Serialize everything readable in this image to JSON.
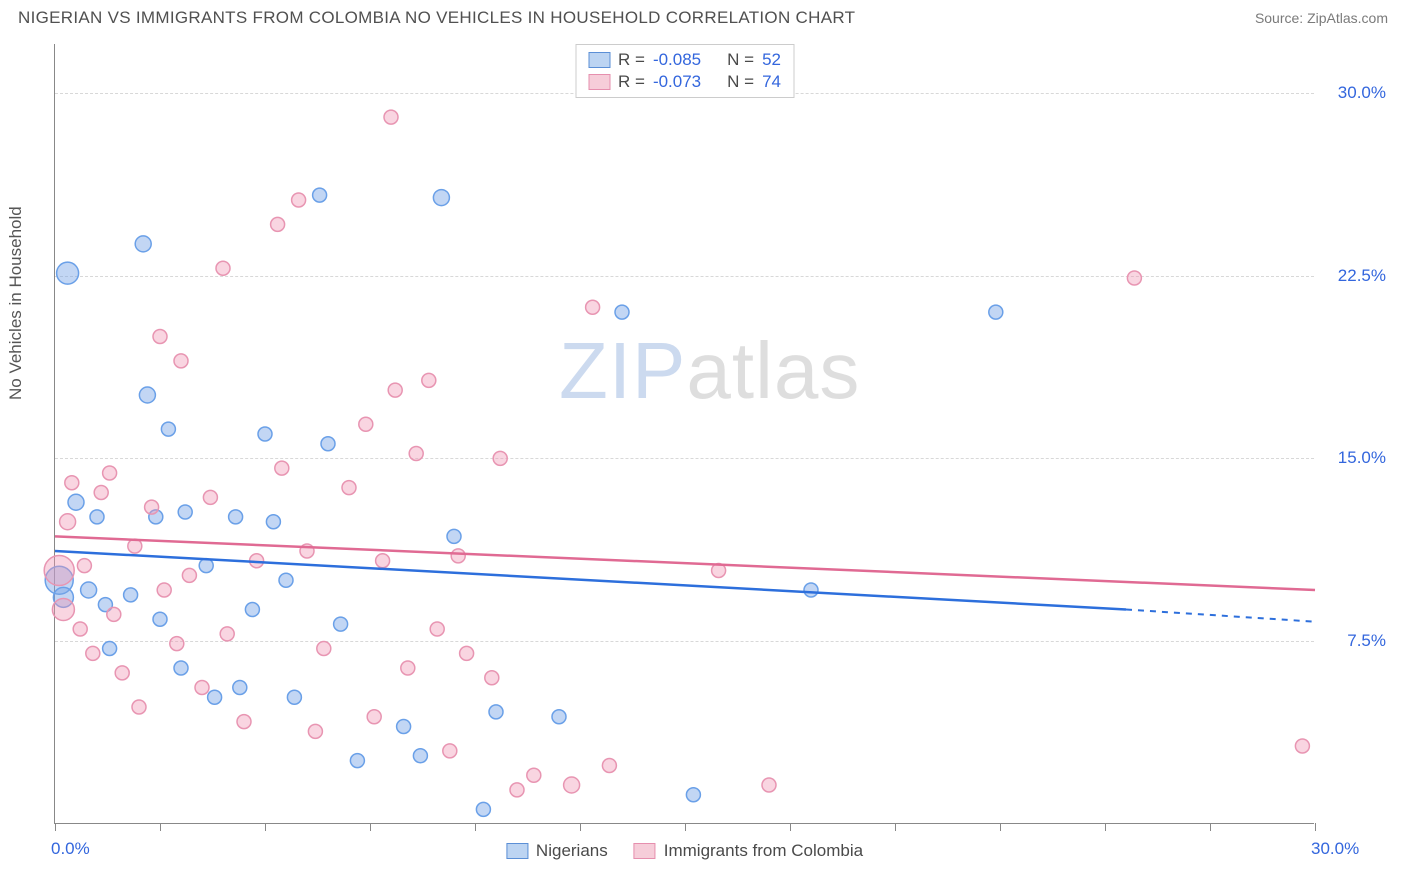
{
  "header": {
    "title": "NIGERIAN VS IMMIGRANTS FROM COLOMBIA NO VEHICLES IN HOUSEHOLD CORRELATION CHART",
    "source": "Source: ZipAtlas.com"
  },
  "chart": {
    "type": "scatter",
    "ylabel": "No Vehicles in Household",
    "watermark_z": "ZIP",
    "watermark_rest": "atlas",
    "xlim": [
      0,
      30
    ],
    "ylim": [
      0,
      32
    ],
    "x_axis_labels": [
      {
        "pos": 0,
        "text": "0.0%"
      },
      {
        "pos": 30,
        "text": "30.0%"
      }
    ],
    "x_ticks": [
      0,
      2.5,
      5,
      7.5,
      10,
      12.5,
      15,
      17.5,
      20,
      22.5,
      25,
      27.5,
      30
    ],
    "y_gridlines": [
      7.5,
      15.0,
      22.5,
      30.0
    ],
    "y_tick_labels": [
      "7.5%",
      "15.0%",
      "22.5%",
      "30.0%"
    ],
    "series": [
      {
        "name": "Nigerians",
        "color_fill": "rgba(120,165,230,0.45)",
        "color_stroke": "#6aa0e8",
        "legend_fill": "#bcd4f2",
        "legend_stroke": "#5b8fd6",
        "line_color": "#2d6fdc",
        "R": "-0.085",
        "N": "52",
        "trend": {
          "x1": 0,
          "y1": 11.2,
          "x2": 25.5,
          "y2": 8.8,
          "x2_dash": 30,
          "y2_dash": 8.3
        },
        "points": [
          {
            "x": 0.3,
            "y": 22.6,
            "r": 11
          },
          {
            "x": 0.1,
            "y": 10.0,
            "r": 14
          },
          {
            "x": 0.2,
            "y": 9.3,
            "r": 10
          },
          {
            "x": 2.1,
            "y": 23.8,
            "r": 8
          },
          {
            "x": 0.5,
            "y": 13.2,
            "r": 8
          },
          {
            "x": 0.8,
            "y": 9.6,
            "r": 8
          },
          {
            "x": 1.0,
            "y": 12.6,
            "r": 7
          },
          {
            "x": 1.2,
            "y": 9.0,
            "r": 7
          },
          {
            "x": 1.3,
            "y": 7.2,
            "r": 7
          },
          {
            "x": 1.8,
            "y": 9.4,
            "r": 7
          },
          {
            "x": 2.2,
            "y": 17.6,
            "r": 8
          },
          {
            "x": 2.4,
            "y": 12.6,
            "r": 7
          },
          {
            "x": 2.5,
            "y": 8.4,
            "r": 7
          },
          {
            "x": 2.7,
            "y": 16.2,
            "r": 7
          },
          {
            "x": 3.0,
            "y": 6.4,
            "r": 7
          },
          {
            "x": 3.1,
            "y": 12.8,
            "r": 7
          },
          {
            "x": 3.6,
            "y": 10.6,
            "r": 7
          },
          {
            "x": 3.8,
            "y": 5.2,
            "r": 7
          },
          {
            "x": 4.3,
            "y": 12.6,
            "r": 7
          },
          {
            "x": 4.4,
            "y": 5.6,
            "r": 7
          },
          {
            "x": 4.7,
            "y": 8.8,
            "r": 7
          },
          {
            "x": 5.0,
            "y": 16.0,
            "r": 7
          },
          {
            "x": 5.2,
            "y": 12.4,
            "r": 7
          },
          {
            "x": 5.5,
            "y": 10.0,
            "r": 7
          },
          {
            "x": 5.7,
            "y": 5.2,
            "r": 7
          },
          {
            "x": 6.3,
            "y": 25.8,
            "r": 7
          },
          {
            "x": 6.5,
            "y": 15.6,
            "r": 7
          },
          {
            "x": 6.8,
            "y": 8.2,
            "r": 7
          },
          {
            "x": 7.2,
            "y": 2.6,
            "r": 7
          },
          {
            "x": 8.3,
            "y": 4.0,
            "r": 7
          },
          {
            "x": 8.7,
            "y": 2.8,
            "r": 7
          },
          {
            "x": 9.2,
            "y": 25.7,
            "r": 8
          },
          {
            "x": 9.5,
            "y": 11.8,
            "r": 7
          },
          {
            "x": 10.2,
            "y": 0.6,
            "r": 7
          },
          {
            "x": 10.5,
            "y": 4.6,
            "r": 7
          },
          {
            "x": 12.0,
            "y": 4.4,
            "r": 7
          },
          {
            "x": 13.5,
            "y": 21.0,
            "r": 7
          },
          {
            "x": 15.2,
            "y": 1.2,
            "r": 7
          },
          {
            "x": 18.0,
            "y": 9.6,
            "r": 7
          },
          {
            "x": 22.4,
            "y": 21.0,
            "r": 7
          }
        ]
      },
      {
        "name": "Immigrants from Colombia",
        "color_fill": "rgba(240,150,180,0.40)",
        "color_stroke": "#e895b2",
        "legend_fill": "#f6cdd9",
        "legend_stroke": "#e68fae",
        "line_color": "#e06a93",
        "R": "-0.073",
        "N": "74",
        "trend": {
          "x1": 0,
          "y1": 11.8,
          "x2": 30,
          "y2": 9.6
        },
        "points": [
          {
            "x": 0.1,
            "y": 10.4,
            "r": 15
          },
          {
            "x": 0.2,
            "y": 8.8,
            "r": 11
          },
          {
            "x": 0.3,
            "y": 12.4,
            "r": 8
          },
          {
            "x": 0.4,
            "y": 14.0,
            "r": 7
          },
          {
            "x": 0.6,
            "y": 8.0,
            "r": 7
          },
          {
            "x": 0.7,
            "y": 10.6,
            "r": 7
          },
          {
            "x": 0.9,
            "y": 7.0,
            "r": 7
          },
          {
            "x": 1.1,
            "y": 13.6,
            "r": 7
          },
          {
            "x": 1.3,
            "y": 14.4,
            "r": 7
          },
          {
            "x": 1.4,
            "y": 8.6,
            "r": 7
          },
          {
            "x": 1.6,
            "y": 6.2,
            "r": 7
          },
          {
            "x": 1.9,
            "y": 11.4,
            "r": 7
          },
          {
            "x": 2.0,
            "y": 4.8,
            "r": 7
          },
          {
            "x": 2.3,
            "y": 13.0,
            "r": 7
          },
          {
            "x": 2.5,
            "y": 20.0,
            "r": 7
          },
          {
            "x": 2.6,
            "y": 9.6,
            "r": 7
          },
          {
            "x": 2.9,
            "y": 7.4,
            "r": 7
          },
          {
            "x": 3.0,
            "y": 19.0,
            "r": 7
          },
          {
            "x": 3.2,
            "y": 10.2,
            "r": 7
          },
          {
            "x": 3.5,
            "y": 5.6,
            "r": 7
          },
          {
            "x": 3.7,
            "y": 13.4,
            "r": 7
          },
          {
            "x": 4.0,
            "y": 22.8,
            "r": 7
          },
          {
            "x": 4.1,
            "y": 7.8,
            "r": 7
          },
          {
            "x": 4.5,
            "y": 4.2,
            "r": 7
          },
          {
            "x": 4.8,
            "y": 10.8,
            "r": 7
          },
          {
            "x": 5.3,
            "y": 24.6,
            "r": 7
          },
          {
            "x": 5.4,
            "y": 14.6,
            "r": 7
          },
          {
            "x": 5.8,
            "y": 25.6,
            "r": 7
          },
          {
            "x": 6.0,
            "y": 11.2,
            "r": 7
          },
          {
            "x": 6.2,
            "y": 3.8,
            "r": 7
          },
          {
            "x": 6.4,
            "y": 7.2,
            "r": 7
          },
          {
            "x": 7.0,
            "y": 13.8,
            "r": 7
          },
          {
            "x": 7.4,
            "y": 16.4,
            "r": 7
          },
          {
            "x": 7.6,
            "y": 4.4,
            "r": 7
          },
          {
            "x": 7.8,
            "y": 10.8,
            "r": 7
          },
          {
            "x": 8.0,
            "y": 29.0,
            "r": 7
          },
          {
            "x": 8.1,
            "y": 17.8,
            "r": 7
          },
          {
            "x": 8.4,
            "y": 6.4,
            "r": 7
          },
          {
            "x": 8.6,
            "y": 15.2,
            "r": 7
          },
          {
            "x": 8.9,
            "y": 18.2,
            "r": 7
          },
          {
            "x": 9.1,
            "y": 8.0,
            "r": 7
          },
          {
            "x": 9.4,
            "y": 3.0,
            "r": 7
          },
          {
            "x": 9.6,
            "y": 11.0,
            "r": 7
          },
          {
            "x": 9.8,
            "y": 7.0,
            "r": 7
          },
          {
            "x": 10.4,
            "y": 6.0,
            "r": 7
          },
          {
            "x": 10.6,
            "y": 15.0,
            "r": 7
          },
          {
            "x": 11.0,
            "y": 1.4,
            "r": 7
          },
          {
            "x": 11.4,
            "y": 2.0,
            "r": 7
          },
          {
            "x": 12.3,
            "y": 1.6,
            "r": 8
          },
          {
            "x": 12.8,
            "y": 21.2,
            "r": 7
          },
          {
            "x": 13.2,
            "y": 2.4,
            "r": 7
          },
          {
            "x": 15.8,
            "y": 10.4,
            "r": 7
          },
          {
            "x": 17.0,
            "y": 1.6,
            "r": 7
          },
          {
            "x": 25.7,
            "y": 22.4,
            "r": 7
          },
          {
            "x": 29.7,
            "y": 3.2,
            "r": 7
          }
        ]
      }
    ]
  }
}
